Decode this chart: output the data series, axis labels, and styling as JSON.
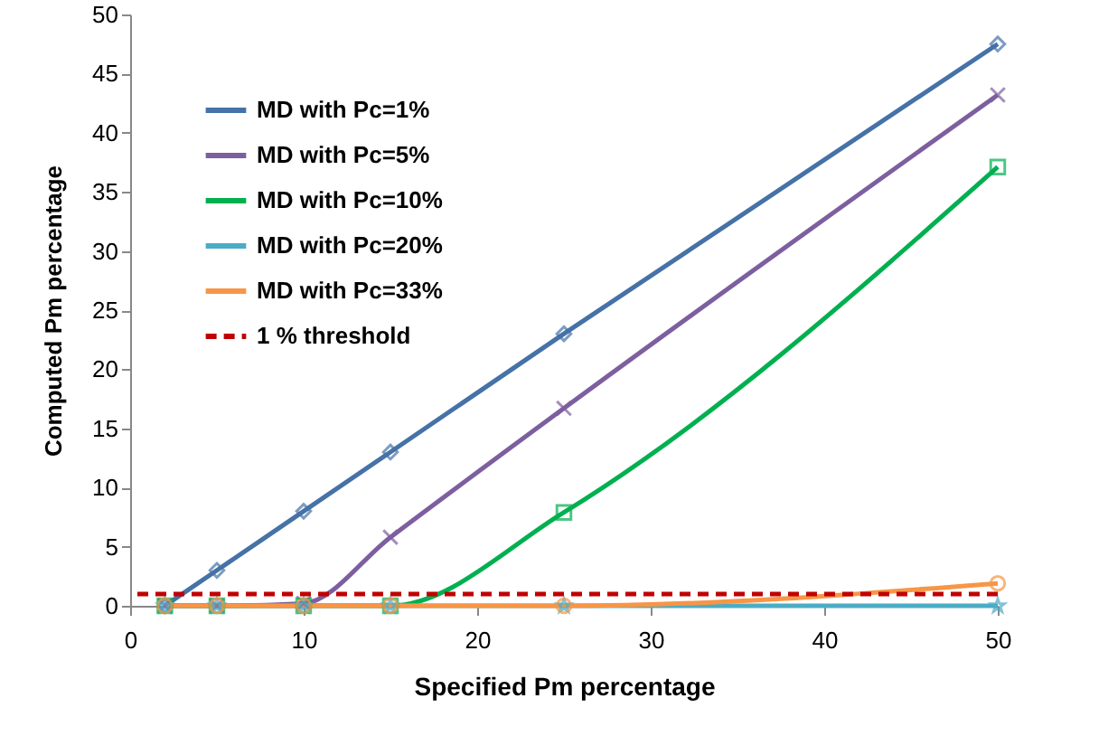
{
  "chart_data": {
    "type": "line",
    "xlabel": "Specified Pm percentage",
    "ylabel": "Computed Pm percentage",
    "x": [
      2,
      5,
      10,
      15,
      25,
      50
    ],
    "series": [
      {
        "name": "MD with Pc=1%",
        "color": "#4572a7",
        "marker": "diamond",
        "values": [
          0,
          3,
          8,
          13,
          23,
          47.5
        ]
      },
      {
        "name": "MD with Pc=5%",
        "color": "#7d5fa0",
        "marker": "cross",
        "values": [
          0,
          0,
          0.2,
          5.8,
          16.7,
          43.2
        ]
      },
      {
        "name": "MD with Pc=10%",
        "color": "#00b050",
        "marker": "square",
        "values": [
          0,
          0,
          0,
          0,
          7.9,
          37.1
        ]
      },
      {
        "name": "MD with Pc=20%",
        "color": "#4bacc6",
        "marker": "star",
        "values": [
          0,
          0,
          0,
          0,
          0,
          0
        ]
      },
      {
        "name": "MD with Pc=33%",
        "color": "#f79646",
        "marker": "circle",
        "values": [
          0,
          0,
          0,
          0,
          0,
          1.9
        ]
      }
    ],
    "ref_lines": [
      {
        "axis": "y",
        "value": 1,
        "label": "1 % threshold",
        "color": "#c00000",
        "line_style": "dashed"
      }
    ],
    "xlim": [
      0,
      50
    ],
    "xticks": [
      0,
      10,
      20,
      30,
      40,
      50
    ],
    "ylim": [
      0,
      50
    ],
    "yticks": [
      0,
      5,
      10,
      15,
      20,
      25,
      30,
      35,
      40,
      45,
      50
    ],
    "grid": false,
    "legend": "top left",
    "line_style": "solid"
  }
}
